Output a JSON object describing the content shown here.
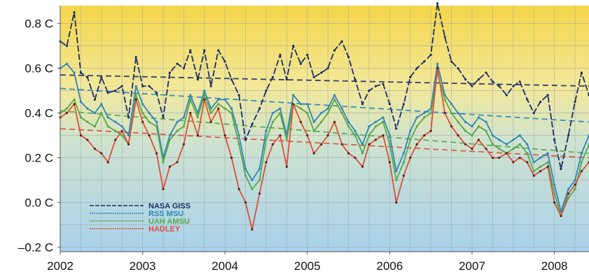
{
  "chart_data": {
    "type": "line",
    "title": "",
    "xlabel": "",
    "ylabel": "",
    "ylim": [
      -0.22,
      0.88
    ],
    "xlim": [
      2002.0,
      2008.42
    ],
    "x_ticks": [
      {
        "value": 2002,
        "label": "2002"
      },
      {
        "value": 2003,
        "label": "2003"
      },
      {
        "value": 2004,
        "label": "2004"
      },
      {
        "value": 2005,
        "label": "2005"
      },
      {
        "value": 2006,
        "label": "2006"
      },
      {
        "value": 2007,
        "label": "2007"
      },
      {
        "value": 2008,
        "label": "2008"
      }
    ],
    "y_ticks": [
      {
        "value": 0.8,
        "label": "0.8 C"
      },
      {
        "value": 0.6,
        "label": "0.6 C"
      },
      {
        "value": 0.4,
        "label": "0.4 C"
      },
      {
        "value": 0.2,
        "label": "0.2 C"
      },
      {
        "value": 0.0,
        "label": "0.0 C"
      },
      {
        "value": -0.2,
        "label": "–0.2 C"
      }
    ],
    "grid": true,
    "background": "vertical gradient yellow to blue",
    "legend_position": "bottom-left",
    "series": [
      {
        "name": "NASA GISS",
        "color": "#1c2f6b",
        "x": [
          2002.0,
          2002.08,
          2002.17,
          2002.25,
          2002.33,
          2002.42,
          2002.5,
          2002.58,
          2002.67,
          2002.75,
          2002.83,
          2002.92,
          2003.0,
          2003.08,
          2003.17,
          2003.25,
          2003.33,
          2003.42,
          2003.5,
          2003.58,
          2003.67,
          2003.75,
          2003.83,
          2003.92,
          2004.0,
          2004.08,
          2004.17,
          2004.25,
          2004.33,
          2004.42,
          2004.5,
          2004.58,
          2004.67,
          2004.75,
          2004.83,
          2004.92,
          2005.0,
          2005.08,
          2005.17,
          2005.25,
          2005.33,
          2005.42,
          2005.5,
          2005.58,
          2005.67,
          2005.75,
          2005.83,
          2005.92,
          2006.0,
          2006.08,
          2006.17,
          2006.25,
          2006.33,
          2006.42,
          2006.5,
          2006.58,
          2006.67,
          2006.75,
          2006.83,
          2006.92,
          2007.0,
          2007.08,
          2007.17,
          2007.25,
          2007.33,
          2007.42,
          2007.5,
          2007.58,
          2007.67,
          2007.75,
          2007.83,
          2007.92,
          2008.0,
          2008.08,
          2008.17,
          2008.25,
          2008.33,
          2008.42
        ],
        "values": [
          0.72,
          0.7,
          0.85,
          0.58,
          0.56,
          0.46,
          0.56,
          0.49,
          0.5,
          0.52,
          0.38,
          0.65,
          0.52,
          0.52,
          0.49,
          0.38,
          0.58,
          0.62,
          0.6,
          0.68,
          0.55,
          0.68,
          0.52,
          0.68,
          0.63,
          0.55,
          0.48,
          0.28,
          0.35,
          0.42,
          0.5,
          0.56,
          0.66,
          0.55,
          0.7,
          0.62,
          0.66,
          0.56,
          0.58,
          0.6,
          0.68,
          0.72,
          0.65,
          0.55,
          0.44,
          0.5,
          0.52,
          0.53,
          0.44,
          0.33,
          0.44,
          0.56,
          0.6,
          0.63,
          0.66,
          0.89,
          0.74,
          0.63,
          0.6,
          0.55,
          0.52,
          0.55,
          0.58,
          0.54,
          0.52,
          0.48,
          0.52,
          0.54,
          0.46,
          0.4,
          0.45,
          0.48,
          0.28,
          0.15,
          0.3,
          0.45,
          0.58,
          0.48
        ],
        "trend": [
          0.57,
          0.52
        ]
      },
      {
        "name": "RSS MSU",
        "color": "#2e86b8",
        "x": [
          2002.0,
          2002.08,
          2002.17,
          2002.25,
          2002.33,
          2002.42,
          2002.5,
          2002.58,
          2002.67,
          2002.75,
          2002.83,
          2002.92,
          2003.0,
          2003.08,
          2003.17,
          2003.25,
          2003.33,
          2003.42,
          2003.5,
          2003.58,
          2003.67,
          2003.75,
          2003.83,
          2003.92,
          2004.0,
          2004.08,
          2004.17,
          2004.25,
          2004.33,
          2004.42,
          2004.5,
          2004.58,
          2004.67,
          2004.75,
          2004.83,
          2004.92,
          2005.0,
          2005.08,
          2005.17,
          2005.25,
          2005.33,
          2005.42,
          2005.5,
          2005.58,
          2005.67,
          2005.75,
          2005.83,
          2005.92,
          2006.0,
          2006.08,
          2006.17,
          2006.25,
          2006.33,
          2006.42,
          2006.5,
          2006.58,
          2006.67,
          2006.75,
          2006.83,
          2006.92,
          2007.0,
          2007.08,
          2007.17,
          2007.25,
          2007.33,
          2007.42,
          2007.5,
          2007.58,
          2007.67,
          2007.75,
          2007.83,
          2007.92,
          2008.0,
          2008.08,
          2008.17,
          2008.25,
          2008.33,
          2008.42
        ],
        "values": [
          0.6,
          0.62,
          0.58,
          0.45,
          0.42,
          0.4,
          0.44,
          0.38,
          0.36,
          0.34,
          0.3,
          0.52,
          0.44,
          0.4,
          0.36,
          0.2,
          0.3,
          0.36,
          0.38,
          0.48,
          0.4,
          0.5,
          0.42,
          0.46,
          0.46,
          0.42,
          0.3,
          0.15,
          0.1,
          0.15,
          0.32,
          0.4,
          0.42,
          0.3,
          0.48,
          0.44,
          0.44,
          0.36,
          0.4,
          0.42,
          0.48,
          0.42,
          0.36,
          0.32,
          0.26,
          0.34,
          0.36,
          0.38,
          0.3,
          0.14,
          0.22,
          0.32,
          0.38,
          0.4,
          0.42,
          0.62,
          0.48,
          0.44,
          0.4,
          0.36,
          0.34,
          0.38,
          0.36,
          0.3,
          0.28,
          0.26,
          0.28,
          0.3,
          0.26,
          0.18,
          0.2,
          0.22,
          0.08,
          -0.04,
          0.06,
          0.1,
          0.22,
          0.3
        ],
        "trend": [
          0.51,
          0.36
        ]
      },
      {
        "name": "UAH AMSU",
        "color": "#58a84a",
        "x": [
          2002.0,
          2002.08,
          2002.17,
          2002.25,
          2002.33,
          2002.42,
          2002.5,
          2002.58,
          2002.67,
          2002.75,
          2002.83,
          2002.92,
          2003.0,
          2003.08,
          2003.17,
          2003.25,
          2003.33,
          2003.42,
          2003.5,
          2003.58,
          2003.67,
          2003.75,
          2003.83,
          2003.92,
          2004.0,
          2004.08,
          2004.17,
          2004.25,
          2004.33,
          2004.42,
          2004.5,
          2004.58,
          2004.67,
          2004.75,
          2004.83,
          2004.92,
          2005.0,
          2005.08,
          2005.17,
          2005.25,
          2005.33,
          2005.42,
          2005.5,
          2005.58,
          2005.67,
          2005.75,
          2005.83,
          2005.92,
          2006.0,
          2006.08,
          2006.17,
          2006.25,
          2006.33,
          2006.42,
          2006.5,
          2006.58,
          2006.67,
          2006.75,
          2006.83,
          2006.92,
          2007.0,
          2007.08,
          2007.17,
          2007.25,
          2007.33,
          2007.42,
          2007.5,
          2007.58,
          2007.67,
          2007.75,
          2007.83,
          2007.92,
          2008.0,
          2008.08,
          2008.17,
          2008.25,
          2008.33,
          2008.42
        ],
        "values": [
          0.4,
          0.42,
          0.46,
          0.38,
          0.36,
          0.34,
          0.4,
          0.34,
          0.32,
          0.3,
          0.26,
          0.48,
          0.4,
          0.36,
          0.34,
          0.18,
          0.28,
          0.32,
          0.34,
          0.46,
          0.38,
          0.48,
          0.4,
          0.44,
          0.42,
          0.4,
          0.26,
          0.12,
          0.06,
          0.1,
          0.28,
          0.36,
          0.4,
          0.28,
          0.44,
          0.42,
          0.4,
          0.32,
          0.36,
          0.4,
          0.46,
          0.4,
          0.34,
          0.3,
          0.22,
          0.3,
          0.34,
          0.36,
          0.26,
          0.1,
          0.18,
          0.28,
          0.34,
          0.38,
          0.4,
          0.58,
          0.46,
          0.4,
          0.36,
          0.32,
          0.3,
          0.34,
          0.32,
          0.26,
          0.24,
          0.22,
          0.24,
          0.26,
          0.22,
          0.14,
          0.16,
          0.18,
          0.04,
          -0.06,
          0.02,
          0.06,
          0.18,
          0.26
        ],
        "trend": [
          0.41,
          0.22
        ]
      },
      {
        "name": "HADLEY",
        "color": "#d9503c",
        "x": [
          2002.0,
          2002.08,
          2002.17,
          2002.25,
          2002.33,
          2002.42,
          2002.5,
          2002.58,
          2002.67,
          2002.75,
          2002.83,
          2002.92,
          2003.0,
          2003.08,
          2003.17,
          2003.25,
          2003.33,
          2003.42,
          2003.5,
          2003.58,
          2003.67,
          2003.75,
          2003.83,
          2003.92,
          2004.0,
          2004.08,
          2004.17,
          2004.25,
          2004.33,
          2004.42,
          2004.5,
          2004.58,
          2004.67,
          2004.75,
          2004.83,
          2004.92,
          2005.0,
          2005.08,
          2005.17,
          2005.25,
          2005.33,
          2005.42,
          2005.5,
          2005.58,
          2005.67,
          2005.75,
          2005.83,
          2005.92,
          2006.0,
          2006.08,
          2006.17,
          2006.25,
          2006.33,
          2006.42,
          2006.5,
          2006.58,
          2006.67,
          2006.75,
          2006.83,
          2006.92,
          2007.0,
          2007.08,
          2007.17,
          2007.25,
          2007.33,
          2007.42,
          2007.5,
          2007.58,
          2007.67,
          2007.75,
          2007.83,
          2007.92,
          2008.0,
          2008.08,
          2008.17,
          2008.25,
          2008.33,
          2008.42
        ],
        "values": [
          0.38,
          0.4,
          0.44,
          0.3,
          0.28,
          0.24,
          0.22,
          0.18,
          0.28,
          0.32,
          0.26,
          0.46,
          0.36,
          0.3,
          0.22,
          0.06,
          0.16,
          0.18,
          0.26,
          0.4,
          0.3,
          0.46,
          0.36,
          0.42,
          0.3,
          0.2,
          0.06,
          0.0,
          -0.12,
          0.04,
          0.18,
          0.26,
          0.3,
          0.16,
          0.44,
          0.36,
          0.3,
          0.22,
          0.26,
          0.3,
          0.36,
          0.26,
          0.22,
          0.2,
          0.16,
          0.26,
          0.28,
          0.3,
          0.18,
          0.0,
          0.12,
          0.2,
          0.26,
          0.3,
          0.32,
          0.6,
          0.4,
          0.34,
          0.3,
          0.26,
          0.24,
          0.28,
          0.24,
          0.2,
          0.2,
          0.22,
          0.18,
          0.2,
          0.18,
          0.12,
          0.14,
          0.16,
          0.0,
          -0.06,
          0.04,
          0.08,
          0.14,
          0.18
        ],
        "trend": [
          0.33,
          0.2
        ]
      }
    ]
  }
}
